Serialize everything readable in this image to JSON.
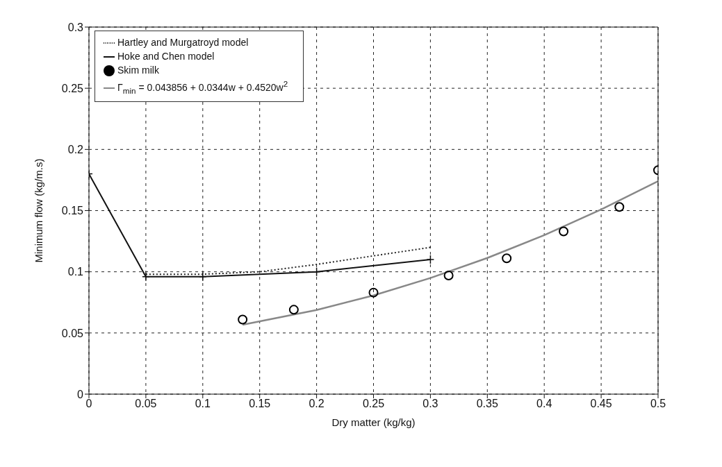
{
  "chart_data": {
    "type": "line",
    "xlabel": "Dry matter (kg/kg)",
    "ylabel": "Minimum flow (kg/m.s)",
    "xlim": [
      0,
      0.5
    ],
    "xticks": [
      0,
      0.05,
      0.1,
      0.15,
      0.2,
      0.25,
      0.3,
      0.35,
      0.4,
      0.45,
      0.5
    ],
    "ylim": [
      0,
      0.3
    ],
    "yticks": [
      0,
      0.05,
      0.1,
      0.15,
      0.2,
      0.25,
      0.3
    ],
    "grid": true,
    "legend": "top left",
    "series": [
      {
        "name": "Skim milk",
        "type": "scatter",
        "marker": "circle",
        "color": "#000000",
        "x": [
          0.135,
          0.18,
          0.25,
          0.316,
          0.367,
          0.417,
          0.466,
          0.5
        ],
        "values": [
          0.061,
          0.069,
          0.083,
          0.097,
          0.111,
          0.133,
          0.153,
          0.183
        ]
      },
      {
        "name": "Hartley and Murgatroyd model",
        "type": "line",
        "marker": "none",
        "line_style": "dotted",
        "color": "#222222",
        "x": [
          0.05,
          0.1,
          0.15,
          0.2,
          0.25,
          0.3
        ],
        "values": [
          0.098,
          0.098,
          0.1,
          0.106,
          0.113,
          0.12
        ]
      },
      {
        "name": "Hoke and Chen model",
        "type": "line",
        "marker": "cross",
        "line_style": "solid",
        "color": "#111111",
        "x": [
          0,
          0.05,
          0.1,
          0.2,
          0.3
        ],
        "values": [
          0.18,
          0.096,
          0.096,
          0.1,
          0.11
        ]
      },
      {
        "name": "Γ$_{min}$ = 0.043856 + 0.0344w + 0.4520w$^{2}$",
        "type": "line",
        "marker": "none",
        "line_style": "solid",
        "color": "#888888",
        "x": [
          0.135,
          0.2,
          0.25,
          0.3,
          0.35,
          0.4,
          0.45,
          0.5
        ],
        "values": [
          0.0567,
          0.0688,
          0.0807,
          0.0949,
          0.1113,
          0.1299,
          0.1509,
          0.1741
        ]
      }
    ]
  }
}
